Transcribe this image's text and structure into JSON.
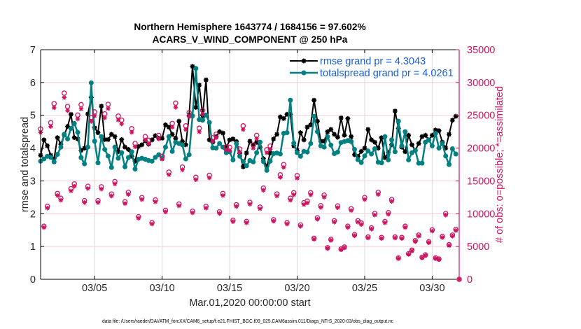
{
  "figure": {
    "footer": "data file: /Users/raeder/DAI/ATM_forcXX/CAM6_setup/f.e21.FHIST_BGC.f09_025.CAM6assim.011/Diags_NTrS_2020-03/obs_diag_output.nc"
  },
  "colors": {
    "left_axis": "#000000",
    "right_axis": "#cc1460",
    "legend_text": "#1a5fd6",
    "grid_vertical": "#dadada",
    "grid_horizontal": "#f4cbd9"
  },
  "chart_data": {
    "type": "line",
    "title": [
      "Northern Hemisphere 1643774 / 1684156 = 97.602%",
      "ACARS_V_WIND_COMPONENT @ 250 hPa"
    ],
    "xlabel": "Mar.01,2020 00:00:00 start",
    "ylabel": "rmse and totalspread",
    "ylabel_right": "# of obs: o=possible; *=assimilated",
    "xlim": [
      0,
      31
    ],
    "xticks": [
      4,
      9,
      14,
      19,
      24,
      29
    ],
    "xticklabels": [
      "03/05",
      "03/10",
      "03/15",
      "03/20",
      "03/25",
      "03/30"
    ],
    "ylim": [
      0,
      7
    ],
    "yticks": [
      0,
      1,
      2,
      3,
      4,
      5,
      6,
      7
    ],
    "yticklabels": [
      "0",
      "1",
      "2",
      "3",
      "4",
      "5",
      "6",
      "7"
    ],
    "ylim_right": [
      0,
      35000
    ],
    "yticks_right": [
      0,
      5000,
      10000,
      15000,
      20000,
      25000,
      30000,
      35000
    ],
    "yticklabels_right": [
      "0",
      "5000",
      "10000",
      "15000",
      "20000",
      "25000",
      "30000",
      "35000"
    ],
    "grid": true,
    "legend": {
      "placement": "top-right",
      "entries": [
        {
          "series": "rmse",
          "label": "rmse grand pr = 4.3043"
        },
        {
          "series": "totalspread",
          "label": "totalspread grand pr = 4.0261"
        }
      ]
    },
    "x": [
      0,
      0.25,
      0.5,
      0.75,
      1,
      1.25,
      1.5,
      1.75,
      2,
      2.25,
      2.5,
      2.75,
      3,
      3.25,
      3.5,
      3.75,
      4,
      4.25,
      4.5,
      4.75,
      5,
      5.25,
      5.5,
      5.75,
      6,
      6.25,
      6.5,
      6.75,
      7,
      7.25,
      7.5,
      7.75,
      8,
      8.25,
      8.5,
      8.75,
      9,
      9.25,
      9.5,
      9.75,
      10,
      10.25,
      10.5,
      10.75,
      11,
      11.25,
      11.5,
      11.75,
      12,
      12.25,
      12.5,
      12.75,
      13,
      13.25,
      13.5,
      13.75,
      14,
      14.25,
      14.5,
      14.75,
      15,
      15.25,
      15.5,
      15.75,
      16,
      16.25,
      16.5,
      16.75,
      17,
      17.25,
      17.5,
      17.75,
      18,
      18.25,
      18.5,
      18.75,
      19,
      19.25,
      19.5,
      19.75,
      20,
      20.25,
      20.5,
      20.75,
      21,
      21.25,
      21.5,
      21.75,
      22,
      22.25,
      22.5,
      22.75,
      23,
      23.25,
      23.5,
      23.75,
      24,
      24.25,
      24.5,
      24.75,
      25,
      25.25,
      25.5,
      25.75,
      26,
      26.25,
      26.5,
      26.75,
      27,
      27.25,
      27.5,
      27.75,
      28,
      28.25,
      28.5,
      28.75,
      29,
      29.25,
      29.5,
      29.75,
      30,
      30.25,
      30.5,
      30.75,
      31
    ],
    "series": [
      {
        "name": "rmse",
        "axis": "left",
        "marker": "*",
        "color": "#000000",
        "values": [
          3.78,
          4.25,
          4.07,
          3.78,
          3.68,
          4.32,
          4.12,
          4.4,
          4.66,
          5.03,
          4.32,
          4.28,
          3.93,
          4.0,
          5.04,
          5.54,
          4.62,
          4.47,
          5.28,
          4.26,
          4.26,
          4.42,
          4.35,
          3.89,
          4.26,
          4.03,
          3.96,
          3.75,
          3.6,
          4.05,
          4.1,
          4.22,
          4.12,
          4.25,
          4.38,
          4.3,
          4.3,
          4.71,
          4.64,
          4.42,
          4.3,
          4.82,
          4.2,
          4.1,
          5.0,
          6.49,
          5.24,
          5.92,
          4.99,
          6.08,
          4.25,
          4.18,
          4.35,
          4.5,
          4.46,
          4.0,
          4.25,
          4.28,
          4.2,
          3.84,
          3.43,
          3.85,
          4.21,
          4.1,
          4.18,
          4.03,
          3.68,
          3.43,
          3.85,
          4.28,
          4.42,
          4.95,
          4.9,
          5.03,
          5.03,
          4.07,
          3.93,
          4.47,
          4.25,
          4.64,
          4.71,
          5.46,
          4.82,
          4.21,
          4.21,
          4.5,
          4.57,
          4.42,
          4.33,
          4.92,
          4.39,
          4.9,
          4.35,
          3.8,
          3.75,
          3.9,
          4.0,
          4.57,
          4.25,
          4.18,
          4.0,
          4.32,
          3.71,
          3.86,
          4.1,
          5.13,
          4.6,
          4.03,
          3.89,
          4.39,
          4.1,
          3.93,
          4.14,
          4.35,
          4.39,
          4.25,
          4.39,
          4.55,
          4.53,
          4.18,
          4.0,
          4.42,
          4.85,
          4.97,
          null
        ]
      },
      {
        "name": "totalspread",
        "axis": "left",
        "marker": "o-filled",
        "color": "#008080",
        "values": [
          3.6,
          3.67,
          3.75,
          3.72,
          3.58,
          3.81,
          4.03,
          4.42,
          4.28,
          4.6,
          4.75,
          4.48,
          3.71,
          3.52,
          4.03,
          5.99,
          4.21,
          3.55,
          4.35,
          3.96,
          3.76,
          3.41,
          4.03,
          3.69,
          3.86,
          3.43,
          3.71,
          3.89,
          3.36,
          3.66,
          3.69,
          3.66,
          3.62,
          3.6,
          3.72,
          3.8,
          3.7,
          4.03,
          4.35,
          3.9,
          4.18,
          4.14,
          4.1,
          3.67,
          3.8,
          4.98,
          6.43,
          4.87,
          4.85,
          5.01,
          4.78,
          4.01,
          4.0,
          4.14,
          4.03,
          3.86,
          3.89,
          3.64,
          4.14,
          3.75,
          3.59,
          3.46,
          3.62,
          3.58,
          3.86,
          4.18,
          3.59,
          3.32,
          3.6,
          3.83,
          3.85,
          3.82,
          4.45,
          4.47,
          5.46,
          4.15,
          3.86,
          3.75,
          3.9,
          3.88,
          4.14,
          4.97,
          4.5,
          4.07,
          4.03,
          4.35,
          4.09,
          3.83,
          3.88,
          4.17,
          4.2,
          4.23,
          4.2,
          3.96,
          3.65,
          3.56,
          3.76,
          3.91,
          3.82,
          3.98,
          3.57,
          3.55,
          4.35,
          3.64,
          4.25,
          3.89,
          4.82,
          4.07,
          4.5,
          3.64,
          3.86,
          3.93,
          3.54,
          3.54,
          4.18,
          4.25,
          4.07,
          4.45,
          4.0,
          4.14,
          3.76,
          3.5,
          3.98,
          3.82,
          null
        ]
      },
      {
        "name": "obs_possible",
        "axis": "right",
        "marker": "o",
        "color": "#cc1460",
        "values": [
          22920,
          8090,
          11120,
          23870,
          26790,
          13080,
          12360,
          28380,
          26350,
          13810,
          14540,
          25030,
          26620,
          11990,
          14180,
          24660,
          25510,
          11990,
          14100,
          25220,
          26670,
          13010,
          14900,
          24880,
          24260,
          11830,
          13260,
          22950,
          20700,
          9540,
          12460,
          21750,
          21190,
          8640,
          12100,
          21940,
          18750,
          10520,
          16340,
          23760,
          26860,
          11480,
          17110,
          23390,
          25410,
          10380,
          15550,
          23030,
          25760,
          11120,
          15850,
          21570,
          22120,
          10280,
          13080,
          20190,
          20110,
          9000,
          11370,
          19850,
          23390,
          8820,
          11730,
          20480,
          21940,
          11000,
          13910,
          19750,
          20300,
          9080,
          13010,
          15920,
          17480,
          8640,
          12360,
          13200,
          15800,
          8280,
          11670,
          11920,
          13200,
          6260,
          9380,
          11230,
          12830,
          4820,
          6090,
          8930,
          11190,
          4620,
          4920,
          8090,
          10750,
          6810,
          8930,
          8570,
          12460,
          6450,
          7840,
          10030,
          13260,
          6370,
          8820,
          10160,
          12170,
          6450,
          3250,
          6370,
          8090,
          3900,
          4450,
          5900,
          6740,
          3360,
          3720,
          5720,
          7540,
          3250,
          3090,
          6530,
          10030,
          5280,
          6740,
          7620,
          0
        ]
      },
      {
        "name": "obs_assimilated",
        "axis": "right",
        "marker": "*",
        "color": "#cc1460",
        "values": [
          22370,
          7900,
          10850,
          23300,
          26150,
          12770,
          12060,
          27700,
          25720,
          13480,
          14190,
          24430,
          25980,
          11700,
          13840,
          24070,
          24900,
          11700,
          13760,
          24610,
          26030,
          12700,
          14540,
          24280,
          23680,
          11550,
          12940,
          22400,
          20200,
          9310,
          12160,
          21230,
          20680,
          8430,
          11810,
          21410,
          18300,
          10270,
          15950,
          23190,
          26220,
          11200,
          16700,
          22830,
          24800,
          10130,
          15180,
          22480,
          25140,
          10850,
          15470,
          21050,
          21590,
          10030,
          12770,
          19710,
          19630,
          8780,
          11100,
          19370,
          22830,
          8610,
          11450,
          19990,
          21410,
          10740,
          13580,
          19280,
          19810,
          8860,
          12700,
          15540,
          17060,
          8430,
          12060,
          12880,
          15420,
          8080,
          11390,
          11630,
          12880,
          6110,
          9150,
          10960,
          12520,
          4700,
          5940,
          8720,
          10920,
          4510,
          4800,
          7900,
          10490,
          6650,
          8720,
          8360,
          12160,
          6300,
          7650,
          9790,
          12940,
          6220,
          8610,
          9920,
          11880,
          6300,
          3170,
          6220,
          7900,
          3810,
          4340,
          5760,
          6580,
          3280,
          3630,
          5580,
          7360,
          3170,
          3020,
          6370,
          9790,
          5150,
          6580,
          7440,
          0
        ]
      }
    ]
  }
}
